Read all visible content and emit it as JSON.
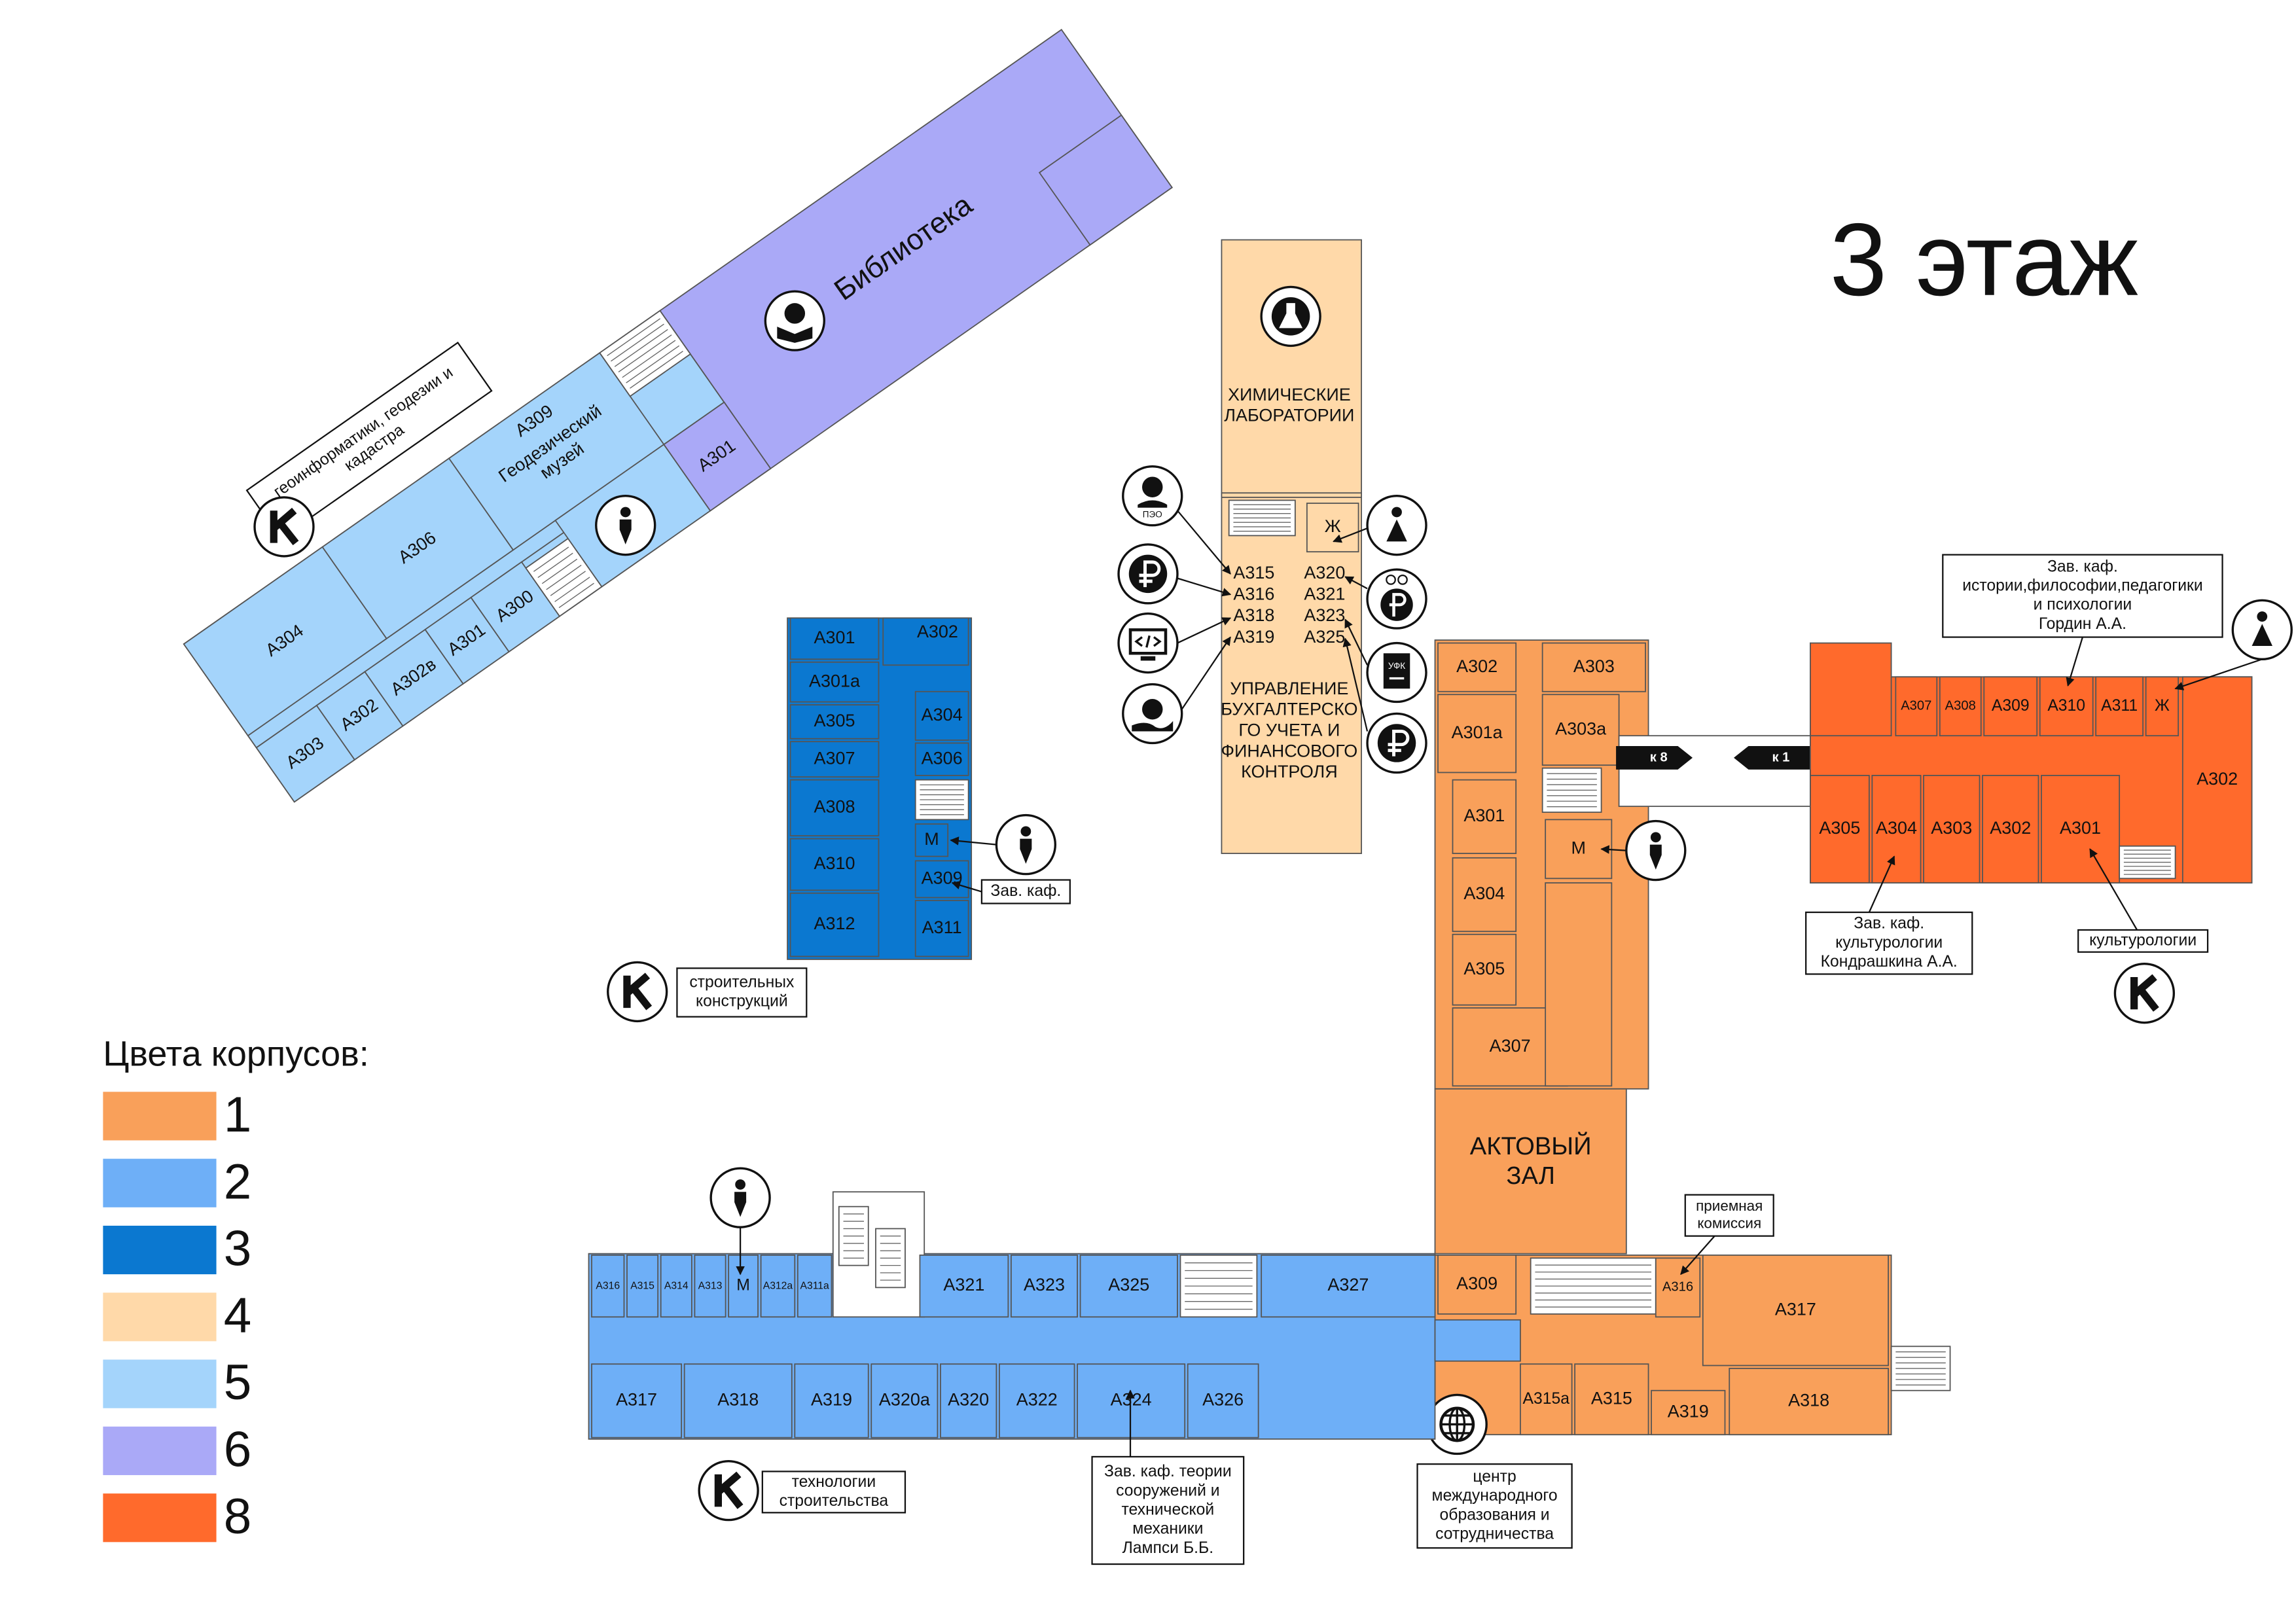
{
  "title": "3 этаж",
  "legend": {
    "title": "Цвета корпусов:",
    "items": [
      {
        "label": "1",
        "color": "#f9a05a"
      },
      {
        "label": "2",
        "color": "#6eaff7"
      },
      {
        "label": "3",
        "color": "#0b78d0"
      },
      {
        "label": "4",
        "color": "#ffd9a9"
      },
      {
        "label": "5",
        "color": "#a4d4fb"
      },
      {
        "label": "6",
        "color": "#aaa9f7"
      },
      {
        "label": "8",
        "color": "#ff6a2c"
      }
    ]
  },
  "building_1": {
    "rooms": [
      "А302",
      "А301а",
      "А301",
      "А304",
      "А305",
      "А307",
      "А303",
      "А303а",
      "М",
      "А309",
      "А316",
      "А317",
      "А315а",
      "А315",
      "А319",
      "А318"
    ],
    "hall": [
      "АКТОВЫЙ",
      "ЗАЛ"
    ],
    "arrows": [
      "к 8",
      "к 1"
    ],
    "notes": [
      [
        "приемная",
        "комиссия"
      ],
      [
        "центр",
        "международного",
        "образования и",
        "сотрудничества"
      ]
    ]
  },
  "building_2": {
    "rooms": [
      "А316",
      "А315",
      "А314",
      "А313",
      "М",
      "А312а",
      "А311а",
      "А321",
      "А323",
      "А325",
      "А327",
      "А317",
      "А318",
      "А319",
      "А320а",
      "А320",
      "А322",
      "А324",
      "А326"
    ],
    "notes": [
      [
        "технологии",
        "строительства"
      ],
      [
        "Зав. каф. теории",
        "сооружений и",
        "технической",
        "механики",
        "Лампси Б.Б."
      ]
    ]
  },
  "building_3": {
    "rooms": [
      "А301",
      "А301а",
      "А305",
      "А307",
      "А308",
      "А310",
      "А312",
      "А302",
      "А304",
      "А306",
      "М",
      "А309",
      "А311"
    ],
    "notes": [
      [
        "Зав. каф."
      ],
      [
        "строительных",
        "конструкций"
      ]
    ]
  },
  "building_4": {
    "rooms": [
      "А315",
      "А316",
      "А318",
      "А319",
      "А320",
      "А321",
      "А323",
      "А325",
      "Ж"
    ],
    "labs": [
      "ХИМИЧЕСКИЕ",
      "ЛАБОРАТОРИИ"
    ],
    "office": [
      "УПРАВЛЕНИЕ",
      "БУХГАЛТЕРСКО",
      "ГО УЧЕТА И",
      "ФИНАНСОВОГО",
      "КОНТРОЛЯ"
    ],
    "icons": [
      "ПЭО",
      "УФК"
    ]
  },
  "building_5": {
    "rooms": [
      "А309",
      "А306",
      "А304",
      "А303",
      "А302",
      "А302в",
      "А301",
      "А300"
    ],
    "museum": [
      "Геодезический",
      "музей"
    ],
    "note": [
      "геоинформатики, геодезии и",
      "кадастра"
    ]
  },
  "building_6": {
    "library": "Библиотека",
    "rooms": [
      "А301"
    ]
  },
  "building_8": {
    "rooms": [
      "А307",
      "А308",
      "А309",
      "А310",
      "А311",
      "Ж",
      "А302",
      "А305",
      "А304",
      "А303",
      "А302",
      "А301"
    ],
    "notes": [
      [
        "Зав. каф.",
        "истории,философии,педагогики",
        "и психологии",
        "Гордин А.А."
      ],
      [
        "Зав. каф.",
        "культурологии",
        "Кондрашкина А.А."
      ],
      [
        "культурологии"
      ]
    ]
  }
}
